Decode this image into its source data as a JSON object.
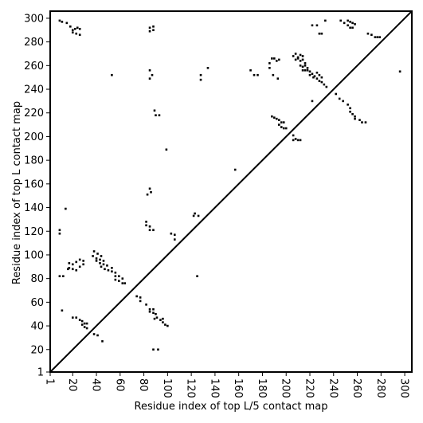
{
  "chart_data": {
    "type": "scatter",
    "title": "",
    "xlabel": "Residue index of top L/5 contact map",
    "ylabel": "Residue index of top L contact map",
    "xlim": [
      1,
      306
    ],
    "ylim": [
      1,
      306
    ],
    "x_ticks": [
      1,
      20,
      40,
      60,
      80,
      100,
      120,
      140,
      160,
      180,
      200,
      220,
      240,
      260,
      280,
      300
    ],
    "y_ticks": [
      1,
      20,
      40,
      60,
      80,
      100,
      120,
      140,
      160,
      180,
      200,
      220,
      240,
      260,
      280,
      300
    ],
    "x_tick_rotation_deg": -90,
    "grid": false,
    "diagonal_line": true,
    "marker": "square",
    "colors": {
      "marker": "#000000",
      "frame": "#000000",
      "background": "#ffffff"
    },
    "series": [
      {
        "points": [
          [
            9,
            298
          ],
          [
            11,
            297
          ],
          [
            15,
            296
          ],
          [
            18,
            293
          ],
          [
            20,
            290
          ],
          [
            22,
            291
          ],
          [
            24,
            292
          ],
          [
            26,
            291
          ],
          [
            20,
            288
          ],
          [
            23,
            287
          ],
          [
            26,
            286
          ],
          [
            85,
            292
          ],
          [
            88,
            293
          ],
          [
            85,
            289
          ],
          [
            88,
            290
          ],
          [
            85,
            256
          ],
          [
            87,
            252
          ],
          [
            85,
            249
          ],
          [
            53,
            252
          ],
          [
            134,
            258
          ],
          [
            128,
            252
          ],
          [
            128,
            248
          ],
          [
            170,
            256
          ],
          [
            173,
            252
          ],
          [
            176,
            252
          ],
          [
            186,
            262
          ],
          [
            186,
            258
          ],
          [
            188,
            266
          ],
          [
            190,
            266
          ],
          [
            192,
            264
          ],
          [
            194,
            265
          ],
          [
            189,
            252
          ],
          [
            193,
            249
          ],
          [
            206,
            268
          ],
          [
            208,
            270
          ],
          [
            210,
            267
          ],
          [
            212,
            269
          ],
          [
            214,
            268
          ],
          [
            208,
            265
          ],
          [
            210,
            266
          ],
          [
            212,
            264
          ],
          [
            214,
            265
          ],
          [
            216,
            262
          ],
          [
            212,
            260
          ],
          [
            214,
            259
          ],
          [
            216,
            260
          ],
          [
            218,
            258
          ],
          [
            214,
            256
          ],
          [
            216,
            256
          ],
          [
            218,
            256
          ],
          [
            220,
            255
          ],
          [
            222,
            253
          ],
          [
            224,
            251
          ],
          [
            226,
            254
          ],
          [
            228,
            252
          ],
          [
            230,
            250
          ],
          [
            220,
            252
          ],
          [
            223,
            250
          ],
          [
            226,
            249
          ],
          [
            228,
            247
          ],
          [
            230,
            246
          ],
          [
            232,
            244
          ],
          [
            234,
            242
          ],
          [
            222,
            294
          ],
          [
            226,
            294
          ],
          [
            228,
            287
          ],
          [
            230,
            287
          ],
          [
            233,
            298
          ],
          [
            246,
            298
          ],
          [
            249,
            296
          ],
          [
            252,
            298
          ],
          [
            254,
            297
          ],
          [
            256,
            296
          ],
          [
            258,
            295
          ],
          [
            252,
            294
          ],
          [
            254,
            292
          ],
          [
            256,
            292
          ],
          [
            269,
            287
          ],
          [
            272,
            286
          ],
          [
            275,
            284
          ],
          [
            277,
            284
          ],
          [
            279,
            284
          ],
          [
            296,
            255
          ],
          [
            222,
            230
          ],
          [
            242,
            236
          ],
          [
            245,
            232
          ],
          [
            248,
            230
          ],
          [
            252,
            227
          ],
          [
            254,
            224
          ],
          [
            254,
            221
          ],
          [
            256,
            219
          ],
          [
            258,
            217
          ],
          [
            258,
            215
          ],
          [
            262,
            214
          ],
          [
            264,
            212
          ],
          [
            267,
            212
          ],
          [
            188,
            217
          ],
          [
            190,
            216
          ],
          [
            192,
            215
          ],
          [
            194,
            214
          ],
          [
            196,
            212
          ],
          [
            198,
            212
          ],
          [
            194,
            210
          ],
          [
            196,
            208
          ],
          [
            198,
            207
          ],
          [
            200,
            207
          ],
          [
            206,
            201
          ],
          [
            208,
            198
          ],
          [
            210,
            197
          ],
          [
            212,
            197
          ],
          [
            206,
            197
          ],
          [
            89,
            222
          ],
          [
            90,
            218
          ],
          [
            93,
            218
          ],
          [
            99,
            189
          ],
          [
            157,
            172
          ],
          [
            14,
            139
          ],
          [
            85,
            156
          ],
          [
            83,
            151
          ],
          [
            86,
            153
          ],
          [
            123,
            135
          ],
          [
            126,
            133
          ],
          [
            122,
            133
          ],
          [
            82,
            128
          ],
          [
            82,
            125
          ],
          [
            85,
            124
          ],
          [
            88,
            121
          ],
          [
            85,
            121
          ],
          [
            103,
            118
          ],
          [
            106,
            117
          ],
          [
            106,
            113
          ],
          [
            9,
            121
          ],
          [
            9,
            118
          ],
          [
            38,
            103
          ],
          [
            41,
            101
          ],
          [
            44,
            99
          ],
          [
            37,
            99
          ],
          [
            40,
            97
          ],
          [
            43,
            96
          ],
          [
            46,
            95
          ],
          [
            40,
            95
          ],
          [
            43,
            93
          ],
          [
            46,
            92
          ],
          [
            49,
            91
          ],
          [
            44,
            90
          ],
          [
            47,
            88
          ],
          [
            50,
            87
          ],
          [
            53,
            89
          ],
          [
            53,
            86
          ],
          [
            56,
            85
          ],
          [
            56,
            82
          ],
          [
            59,
            82
          ],
          [
            62,
            80
          ],
          [
            59,
            78
          ],
          [
            62,
            76
          ],
          [
            64,
            76
          ],
          [
            56,
            79
          ],
          [
            17,
            93
          ],
          [
            20,
            92
          ],
          [
            23,
            94
          ],
          [
            26,
            96
          ],
          [
            29,
            95
          ],
          [
            17,
            89
          ],
          [
            20,
            88
          ],
          [
            23,
            87
          ],
          [
            26,
            90
          ],
          [
            29,
            92
          ],
          [
            16,
            88
          ],
          [
            9,
            82
          ],
          [
            12,
            82
          ],
          [
            125,
            82
          ],
          [
            74,
            65
          ],
          [
            77,
            64
          ],
          [
            77,
            61
          ],
          [
            82,
            58
          ],
          [
            85,
            54
          ],
          [
            88,
            54
          ],
          [
            85,
            52
          ],
          [
            88,
            51
          ],
          [
            90,
            50
          ],
          [
            91,
            47
          ],
          [
            94,
            45
          ],
          [
            96,
            46
          ],
          [
            96,
            43
          ],
          [
            98,
            41
          ],
          [
            100,
            40
          ],
          [
            89,
            46
          ],
          [
            11,
            53
          ],
          [
            20,
            47
          ],
          [
            23,
            47
          ],
          [
            26,
            45
          ],
          [
            28,
            44
          ],
          [
            28,
            41
          ],
          [
            30,
            42
          ],
          [
            32,
            42
          ],
          [
            30,
            39
          ],
          [
            32,
            38
          ],
          [
            38,
            33
          ],
          [
            41,
            32
          ],
          [
            45,
            27
          ],
          [
            88,
            20
          ],
          [
            92,
            20
          ]
        ]
      }
    ]
  }
}
